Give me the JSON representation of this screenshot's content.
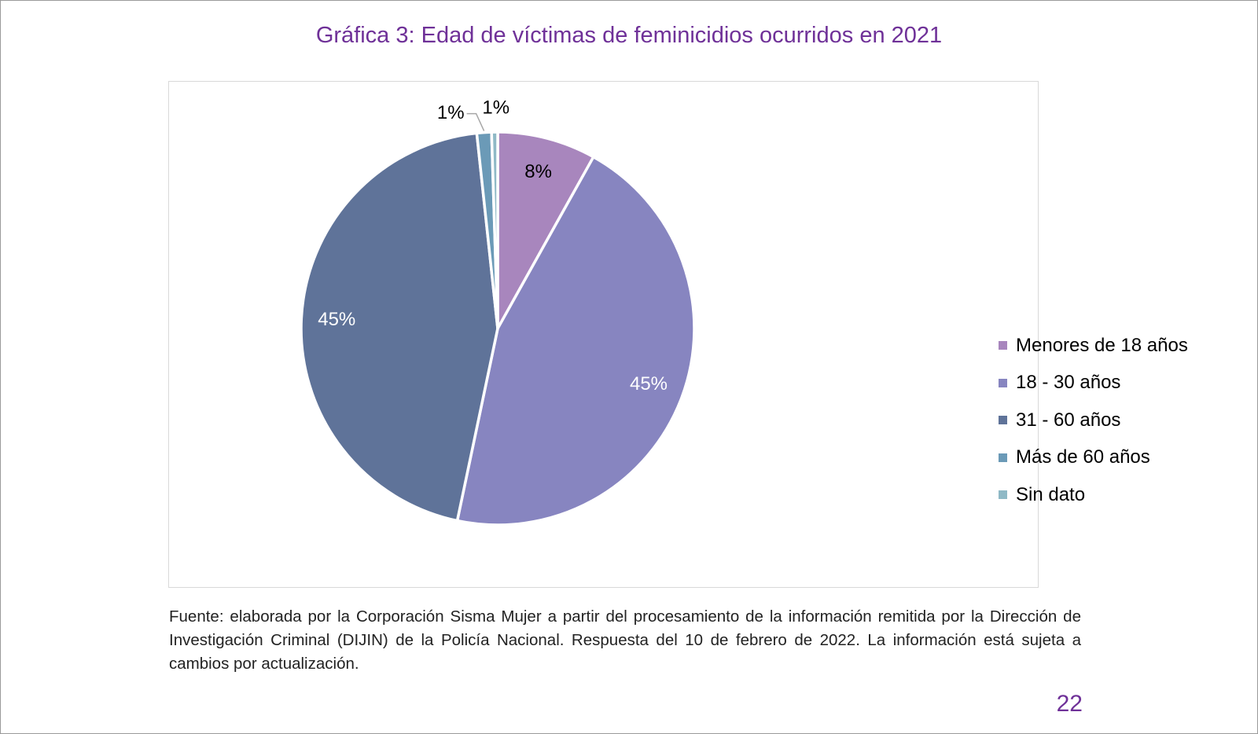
{
  "title": "Gráfica 3: Edad de víctimas de feminicidios ocurridos en 2021",
  "chart_data": {
    "type": "pie",
    "title": "",
    "start_angle_deg": 0,
    "direction": "clockwise",
    "legend_position": "right",
    "categories": [
      "Menores de 18 años",
      "18 - 30 años",
      "31 - 60 años",
      "Más de 60 años",
      "Sin dato"
    ],
    "values": [
      8.1,
      45.2,
      45.0,
      1.2,
      0.5
    ],
    "labels": [
      "8%",
      "45%",
      "45%",
      "1%",
      "1%"
    ],
    "colors": [
      "#a886bd",
      "#8785c0",
      "#5f7399",
      "#6b9ab7",
      "#8fb9c6"
    ],
    "label_colors": [
      "#000000",
      "#ffffff",
      "#ffffff",
      "#000000",
      "#000000"
    ]
  },
  "source": "Fuente: elaborada por la Corporación Sisma Mujer a partir del procesamiento de la  información remitida por la Dirección de Investigación Criminal (DIJIN) de la Policía Nacional. Respuesta del 10 de febrero de 2022. La información está sujeta a cambios por actualización.",
  "page_number": "22"
}
